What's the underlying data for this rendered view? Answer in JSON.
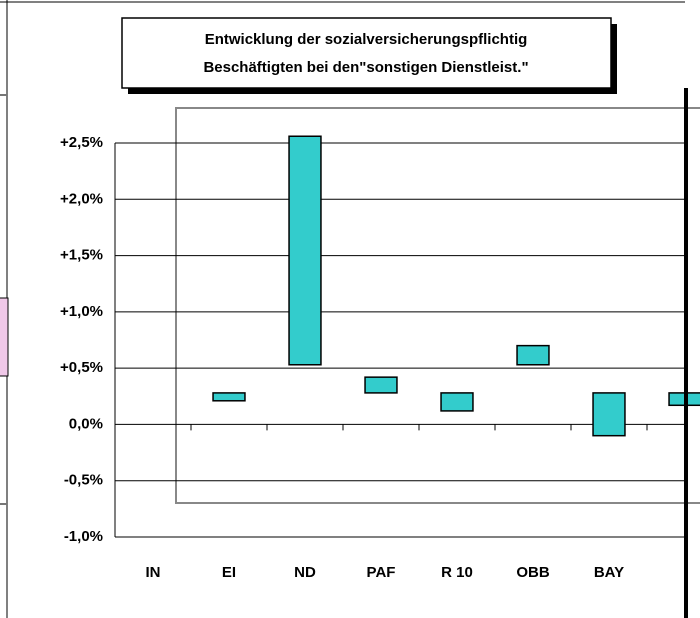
{
  "chart_data": {
    "type": "floating-bar",
    "title": [
      "Entwicklung der sozialversicherungspflichtig",
      "Beschäftigten bei den\"sonstigen Dienstleist.\""
    ],
    "categories": [
      "IN",
      "EI",
      "ND",
      "PAF",
      "R 10",
      "OBB",
      "BAY",
      null
    ],
    "ranges": [
      null,
      [
        0.21,
        0.28
      ],
      [
        0.53,
        2.56
      ],
      [
        0.28,
        0.42
      ],
      [
        0.12,
        0.28
      ],
      [
        0.53,
        0.7
      ],
      [
        -0.1,
        0.28
      ],
      [
        0.17,
        0.28
      ]
    ],
    "color": "#33cccc",
    "ylim": [
      -1.0,
      2.5
    ],
    "yticks": [
      {
        "value": -1.0,
        "label": "-1,0%"
      },
      {
        "value": -0.5,
        "label": "-0,5%"
      },
      {
        "value": 0.0,
        "label": "0,0%"
      },
      {
        "value": 0.5,
        "label": "+0,5%"
      },
      {
        "value": 1.0,
        "label": "+1,0%"
      },
      {
        "value": 1.5,
        "label": "+1,5%"
      },
      {
        "value": 2.0,
        "label": "+2,0%"
      },
      {
        "value": 2.5,
        "label": "+2,5%"
      }
    ],
    "grid": true
  }
}
